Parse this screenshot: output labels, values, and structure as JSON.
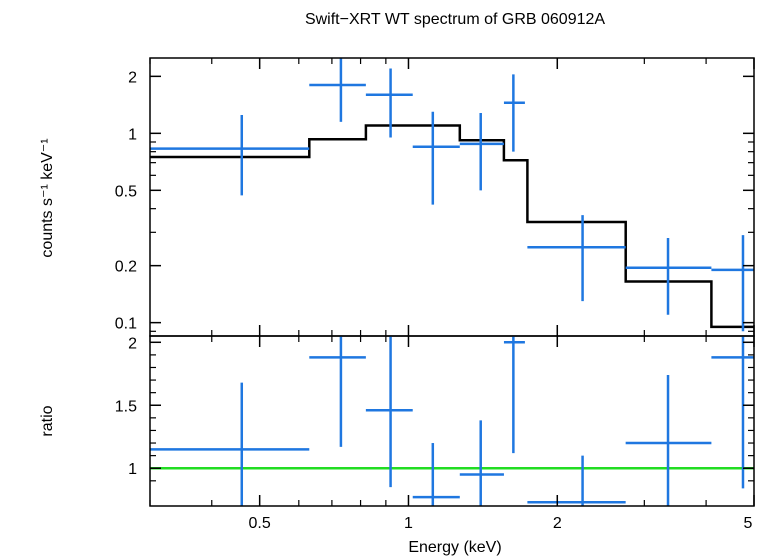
{
  "chart_data": {
    "title": "Swift−XRT WT spectrum of GRB 060912A",
    "xlabel": "Energy (keV)",
    "x_scale": "log",
    "xlim": [
      0.3,
      5.0
    ],
    "x_ticks": [
      {
        "value": 0.5,
        "label": "0.5"
      },
      {
        "value": 1,
        "label": "1"
      },
      {
        "value": 2,
        "label": "2"
      },
      {
        "value": 5,
        "label": "5"
      }
    ],
    "top_panel": {
      "ylabel": "counts s⁻¹ keV⁻¹",
      "y_scale": "log",
      "ylim": [
        0.085,
        2.5
      ],
      "y_ticks": [
        {
          "value": 0.1,
          "label": "0.1"
        },
        {
          "value": 0.2,
          "label": "0.2"
        },
        {
          "value": 0.5,
          "label": "0.5"
        },
        {
          "value": 1,
          "label": "1"
        },
        {
          "value": 2,
          "label": "2"
        }
      ],
      "data": {
        "type": "errorbar",
        "color": "#1f77e0",
        "points": [
          {
            "x": 0.46,
            "x_lo": 0.3,
            "x_hi": 0.63,
            "y": 0.83,
            "y_lo": 0.47,
            "y_hi": 1.25
          },
          {
            "x": 0.73,
            "x_lo": 0.63,
            "x_hi": 0.82,
            "y": 1.8,
            "y_lo": 1.15,
            "y_hi": 2.5
          },
          {
            "x": 0.92,
            "x_lo": 0.82,
            "x_hi": 1.02,
            "y": 1.6,
            "y_lo": 0.95,
            "y_hi": 2.2
          },
          {
            "x": 1.12,
            "x_lo": 1.02,
            "x_hi": 1.27,
            "y": 0.85,
            "y_lo": 0.42,
            "y_hi": 1.3
          },
          {
            "x": 1.4,
            "x_lo": 1.27,
            "x_hi": 1.56,
            "y": 0.88,
            "y_lo": 0.5,
            "y_hi": 1.28
          },
          {
            "x": 1.63,
            "x_lo": 1.56,
            "x_hi": 1.72,
            "y": 1.45,
            "y_lo": 0.8,
            "y_hi": 2.05
          },
          {
            "x": 2.25,
            "x_lo": 1.74,
            "x_hi": 2.75,
            "y": 0.25,
            "y_lo": 0.13,
            "y_hi": 0.37
          },
          {
            "x": 3.35,
            "x_lo": 2.75,
            "x_hi": 4.1,
            "y": 0.195,
            "y_lo": 0.11,
            "y_hi": 0.28
          },
          {
            "x": 4.75,
            "x_lo": 4.1,
            "x_hi": 5.0,
            "y": 0.19,
            "y_lo": 0.09,
            "y_hi": 0.29
          }
        ]
      },
      "model": {
        "type": "step",
        "color": "#000000",
        "steps": [
          {
            "x_lo": 0.3,
            "x_hi": 0.63,
            "y": 0.75
          },
          {
            "x_lo": 0.63,
            "x_hi": 0.82,
            "y": 0.93
          },
          {
            "x_lo": 0.82,
            "x_hi": 1.27,
            "y": 1.1
          },
          {
            "x_lo": 1.27,
            "x_hi": 1.56,
            "y": 0.92
          },
          {
            "x_lo": 1.56,
            "x_hi": 1.74,
            "y": 0.72
          },
          {
            "x_lo": 1.74,
            "x_hi": 2.75,
            "y": 0.34
          },
          {
            "x_lo": 2.75,
            "x_hi": 4.1,
            "y": 0.165
          },
          {
            "x_lo": 4.1,
            "x_hi": 5.0,
            "y": 0.095
          }
        ]
      }
    },
    "bottom_panel": {
      "ylabel": "ratio",
      "y_scale": "linear",
      "ylim": [
        0.7,
        2.05
      ],
      "y_ticks": [
        {
          "value": 1,
          "label": "1"
        },
        {
          "value": 1.5,
          "label": "1.5"
        },
        {
          "value": 2,
          "label": "2"
        }
      ],
      "reference_line": {
        "y": 1,
        "color": "#22dd22"
      },
      "data": {
        "type": "errorbar",
        "color": "#1f77e0",
        "points": [
          {
            "x": 0.46,
            "x_lo": 0.3,
            "x_hi": 0.63,
            "y": 1.15,
            "y_lo": 0.7,
            "y_hi": 1.68
          },
          {
            "x": 0.73,
            "x_lo": 0.63,
            "x_hi": 0.82,
            "y": 1.88,
            "y_lo": 1.17,
            "y_hi": 2.05
          },
          {
            "x": 0.92,
            "x_lo": 0.82,
            "x_hi": 1.02,
            "y": 1.46,
            "y_lo": 0.85,
            "y_hi": 2.05
          },
          {
            "x": 1.12,
            "x_lo": 1.02,
            "x_hi": 1.27,
            "y": 0.77,
            "y_lo": 0.7,
            "y_hi": 1.2
          },
          {
            "x": 1.4,
            "x_lo": 1.27,
            "x_hi": 1.56,
            "y": 0.95,
            "y_lo": 0.7,
            "y_hi": 1.38
          },
          {
            "x": 1.63,
            "x_lo": 1.56,
            "x_hi": 1.72,
            "y": 2.0,
            "y_lo": 1.12,
            "y_hi": 2.05
          },
          {
            "x": 2.25,
            "x_lo": 1.74,
            "x_hi": 2.75,
            "y": 0.73,
            "y_lo": 0.7,
            "y_hi": 1.1
          },
          {
            "x": 3.35,
            "x_lo": 2.75,
            "x_hi": 4.1,
            "y": 1.2,
            "y_lo": 0.7,
            "y_hi": 1.74
          },
          {
            "x": 4.75,
            "x_lo": 4.1,
            "x_hi": 5.0,
            "y": 1.88,
            "y_lo": 0.84,
            "y_hi": 2.05
          }
        ]
      }
    }
  }
}
